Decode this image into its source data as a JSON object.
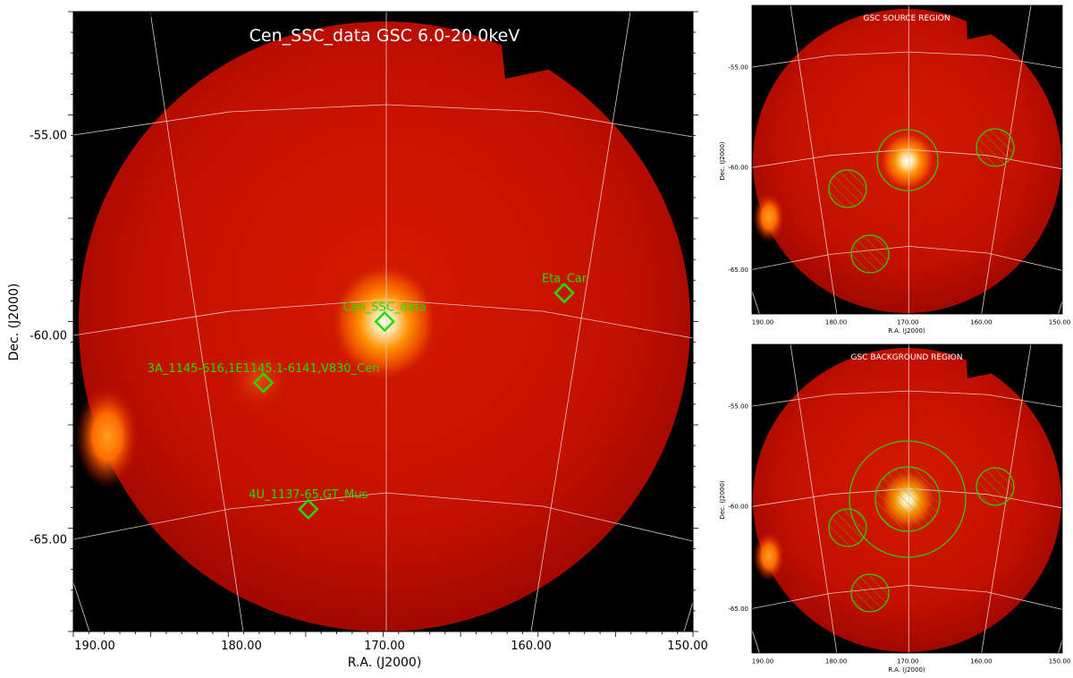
{
  "main_panel": {
    "title": "Cen_SSC_data GSC 6.0-20.0keV",
    "xlabel": "R.A. (J2000)",
    "ylabel": "Dec. (J2000)",
    "ra_range": [
      190.9,
      149.5
    ],
    "dec_range": [
      -52.0,
      -67.2
    ],
    "ra_tick_labels": [
      "190.00",
      "180.00",
      "170.00",
      "160.00",
      "150.00"
    ],
    "dec_tick_labels": [
      "-55.00",
      "-60.00",
      "-65.00"
    ],
    "sources": [
      {
        "name": "Cen_SSC_data",
        "ra": 170.1,
        "dec": -59.6
      },
      {
        "name": "Eta_Car",
        "ra": 158.1,
        "dec": -58.9
      },
      {
        "name": "3A_1145-616,1E1145.1-6141,V830_Cen",
        "ra": 178.2,
        "dec": -61.1
      },
      {
        "name": "4U_1137-65,GT_Mus",
        "ra": 175.2,
        "dec": -64.2
      }
    ]
  },
  "source_panel": {
    "title": "GSC SOURCE REGION",
    "xlabel": "R.A. (J2000)",
    "ylabel": "Dec. (J2000)",
    "ra_tick_labels": [
      "190.00",
      "180.00",
      "170.00",
      "160.00",
      "150.00"
    ],
    "dec_tick_labels": [
      "-55.00",
      "-60.00",
      "-65.00"
    ]
  },
  "background_panel": {
    "title": "GSC BACKGROUND REGION",
    "xlabel": "R.A. (J2000)",
    "ylabel": "Dec. (J2000)",
    "ra_tick_labels": [
      "190.00",
      "180.00",
      "170.00",
      "160.00",
      "150.00"
    ],
    "dec_tick_labels": [
      "-55.00",
      "-60.00",
      "-65.00"
    ]
  },
  "colors": {
    "field": "#c41000",
    "source_marker": "#22dd00",
    "region_circle": "#33cc00",
    "grid": "#e8c8c0",
    "title_text": "#ffffff"
  }
}
